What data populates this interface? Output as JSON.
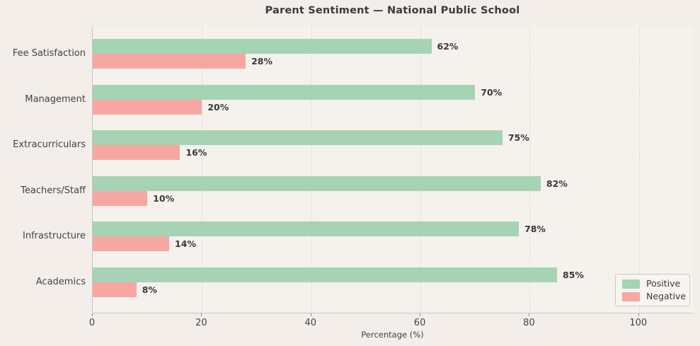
{
  "chart_data": {
    "type": "bar",
    "orientation": "horizontal",
    "title": "Parent Sentiment — National Public School",
    "xlabel": "Percentage (%)",
    "ylabel": "",
    "categories": [
      "Fee Satisfaction",
      "Management",
      "Extracurriculars",
      "Teachers/Staff",
      "Infrastructure",
      "Academics"
    ],
    "series": [
      {
        "name": "Positive",
        "color": "#a6d3b4",
        "values": [
          62,
          70,
          75,
          82,
          78,
          85
        ],
        "labels": [
          "62%",
          "70%",
          "75%",
          "82%",
          "78%",
          "85%"
        ]
      },
      {
        "name": "Negative",
        "color": "#f6a7a2",
        "values": [
          28,
          20,
          16,
          10,
          14,
          8
        ],
        "labels": [
          "28%",
          "20%",
          "16%",
          "10%",
          "14%",
          "8%"
        ]
      }
    ],
    "x_ticks": [
      0,
      20,
      40,
      60,
      80,
      100
    ],
    "xlim": [
      0,
      110
    ],
    "grid": "dashed-vertical",
    "legend_position": "lower-right",
    "colors": {
      "figure_background": "#f3eee9",
      "plot_background": "#f5f1ec",
      "positive": "#a6d3b4",
      "negative": "#f6a7a2",
      "text": "#3b3b3b",
      "gridline": "#ddd8d2"
    }
  }
}
